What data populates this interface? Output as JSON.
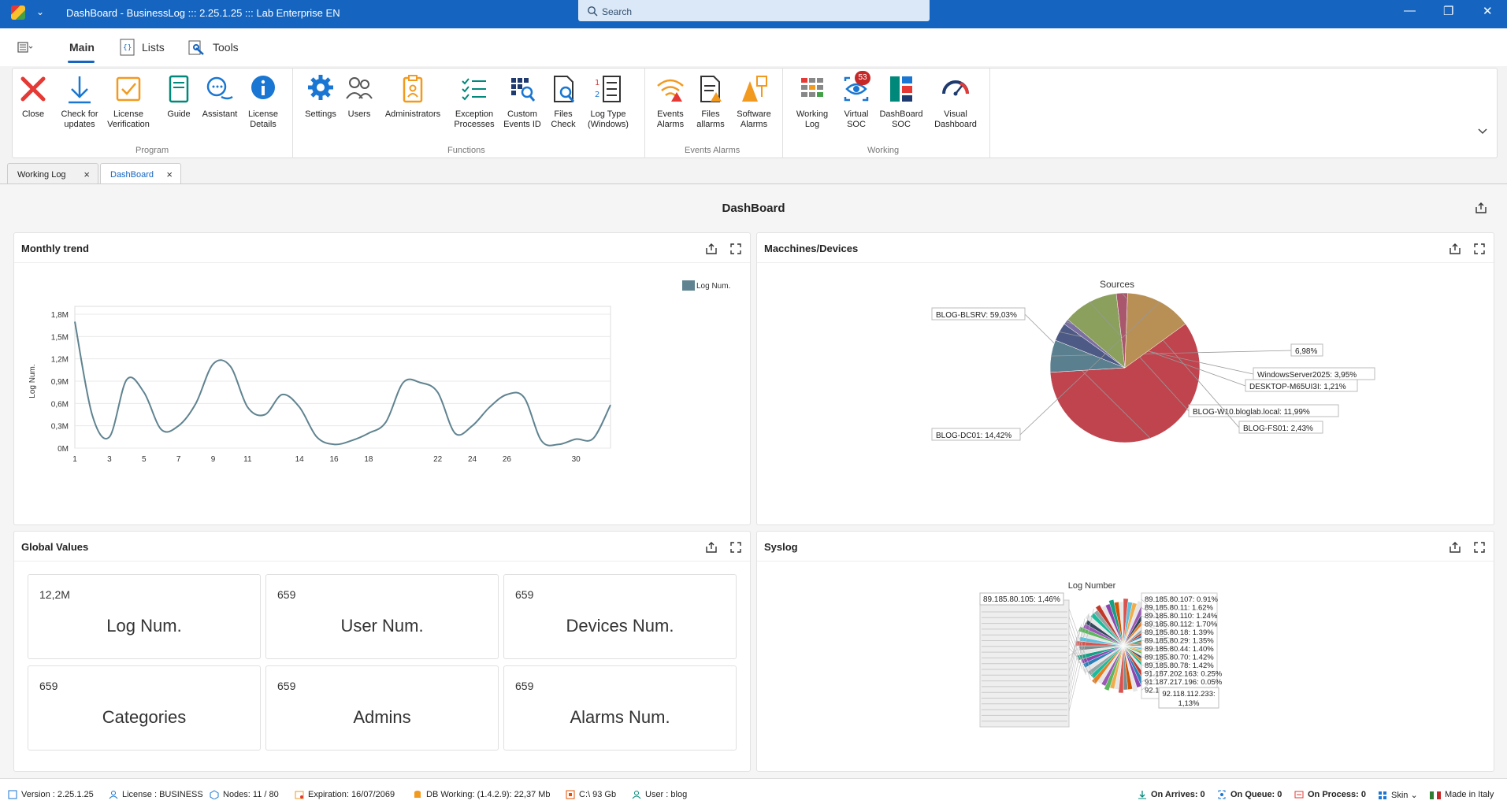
{
  "window": {
    "title": "DashBoard - BusinessLog ::: 2.25.1.25 ::: Lab Enterprise EN",
    "search_placeholder": "Search",
    "quick_access": "⌄"
  },
  "ribbon_tabs": [
    {
      "label": "Main"
    },
    {
      "label": "Lists"
    },
    {
      "label": "Tools"
    }
  ],
  "ribbon": {
    "groups": {
      "program": "Program",
      "functions": "Functions",
      "events_alarms": "Events Alarms",
      "working": "Working"
    },
    "buttons": {
      "close": "Close",
      "check_updates": "Check for updates",
      "license_verification": "License Verification",
      "guide": "Guide",
      "assistant": "Assistant",
      "license_details": "License Details",
      "settings": "Settings",
      "users": "Users",
      "administrators": "Administrators",
      "exception_processes": "Exception Processes",
      "custom_events": "Custom Events ID",
      "files_check": "Files Check",
      "log_type": "Log Type (Windows)",
      "events_alarms": "Events Alarms",
      "files_alarms": "Files allarms",
      "software_alarms": "Software Alarms",
      "working_log": "Working Log",
      "virtual_soc": "Virtual SOC",
      "virtual_soc_badge": "53",
      "dashboard_soc": "DashBoard SOC",
      "visual_dashboard": "Visual Dashboard"
    }
  },
  "doc_tabs": [
    {
      "label": "Working Log",
      "close": "×"
    },
    {
      "label": "DashBoard",
      "close": "×"
    }
  ],
  "dashboard": {
    "title": "DashBoard",
    "panels": {
      "monthly_trend": "Monthly trend",
      "machines": "Macchines/Devices",
      "global_values": "Global Values",
      "syslog": "Syslog"
    }
  },
  "global_values": [
    {
      "value": "12,2M",
      "label": "Log Num."
    },
    {
      "value": "659",
      "label": "User Num."
    },
    {
      "value": "659",
      "label": "Devices Num."
    },
    {
      "value": "659",
      "label": "Categories"
    },
    {
      "value": "659",
      "label": "Admins"
    },
    {
      "value": "659",
      "label": "Alarms Num."
    }
  ],
  "chart_data": [
    {
      "type": "line",
      "title": "",
      "xlabel": "",
      "ylabel": "Log Num.",
      "legend": {
        "position": "top-right",
        "entries": [
          "Log Num."
        ]
      },
      "x_ticks": [
        "1",
        "3",
        "5",
        "7",
        "9",
        "11",
        "14",
        "16",
        "18",
        "22",
        "24",
        "26",
        "30"
      ],
      "y_ticks": [
        "0M",
        "0,3M",
        "0,6M",
        "0,9M",
        "1,2M",
        "1,5M",
        "1,8M"
      ],
      "ylim": [
        0,
        1.8
      ],
      "grid": true,
      "series": [
        {
          "name": "Log Num.",
          "color": "#5f8390",
          "values": [
            1.7,
            0.45,
            0.15,
            0.92,
            0.75,
            0.25,
            0.3,
            0.6,
            1.13,
            1.1,
            0.55,
            0.45,
            0.72,
            0.55,
            0.15,
            0.05,
            0.1,
            0.2,
            0.35,
            0.88,
            0.88,
            0.75,
            0.2,
            0.3,
            0.55,
            0.72,
            0.68,
            0.1,
            0.05,
            0.12,
            0.13,
            0.58
          ]
        }
      ]
    },
    {
      "type": "pie",
      "title": "Sources",
      "series": [
        {
          "label": "BLOG-BLSRV: 59,03%",
          "value": 59.03,
          "color": "#c0444e"
        },
        {
          "label": "6,98%",
          "value": 6.98,
          "color": "#5a7f8e"
        },
        {
          "label": "WindowsServer2025: 3,95%",
          "value": 3.95,
          "color": "#4e5a86"
        },
        {
          "label": "DESKTOP-M65UI3I: 1,21%",
          "value": 1.21,
          "color": "#7a6fa0"
        },
        {
          "label": "BLOG-W10.bloglab.local: 11,99%",
          "value": 11.99,
          "color": "#8aa05c"
        },
        {
          "label": "BLOG-FS01: 2,43%",
          "value": 2.43,
          "color": "#a9576c"
        },
        {
          "label": "BLOG-DC01: 14,42%",
          "value": 14.42,
          "color": "#b88f55"
        }
      ]
    },
    {
      "type": "pie",
      "title": "Log Number",
      "series": [
        {
          "label": "89.185.80.105: 1,46%",
          "value": 1.46
        },
        {
          "label": "89.185.80.107: 0.91%",
          "value": 0.91
        },
        {
          "label": "89.185.80.11: 1.62%",
          "value": 1.62
        },
        {
          "label": "89.185.80.110: 1.24%",
          "value": 1.24
        },
        {
          "label": "89.185.80.112: 1.70%",
          "value": 1.7
        },
        {
          "label": "89.185.80.18: 1.39%",
          "value": 1.39
        },
        {
          "label": "89.185.80.29: 1.35%",
          "value": 1.35
        },
        {
          "label": "89.185.80.44: 1.40%",
          "value": 1.4
        },
        {
          "label": "89.185.80.70: 1.42%",
          "value": 1.42
        },
        {
          "label": "89.185.80.78: 1.42%",
          "value": 1.42
        },
        {
          "label": "91.187.202.163: 0.25%",
          "value": 0.25
        },
        {
          "label": "91.187.217.196: 0.05%",
          "value": 0.05
        },
        {
          "label": "92.1",
          "value": 0
        },
        {
          "label": "92.118.112.233: 1,13%",
          "value": 1.13
        }
      ]
    }
  ],
  "statusbar": {
    "version": "Version : 2.25.1.25",
    "license": "License : BUSINESS",
    "nodes": "Nodes: 11 / 80",
    "expiration": "Expiration: 16/07/2069",
    "db": "DB Working: (1.4.2.9): 22,37 Mb",
    "disk": "C:\\ 93 Gb",
    "user": "User : blog",
    "on_arrives": "On Arrives: 0",
    "on_queue": "On Queue: 0",
    "on_process": "On Process: 0",
    "skin": "Skin",
    "made_in": "Made in Italy"
  },
  "colors": {
    "titlebar": "#1565c0",
    "accent": "#1565c0",
    "close_red": "#e53935",
    "orange": "#f29a1f",
    "teal": "#00897b",
    "blue_icon": "#1976d2"
  }
}
